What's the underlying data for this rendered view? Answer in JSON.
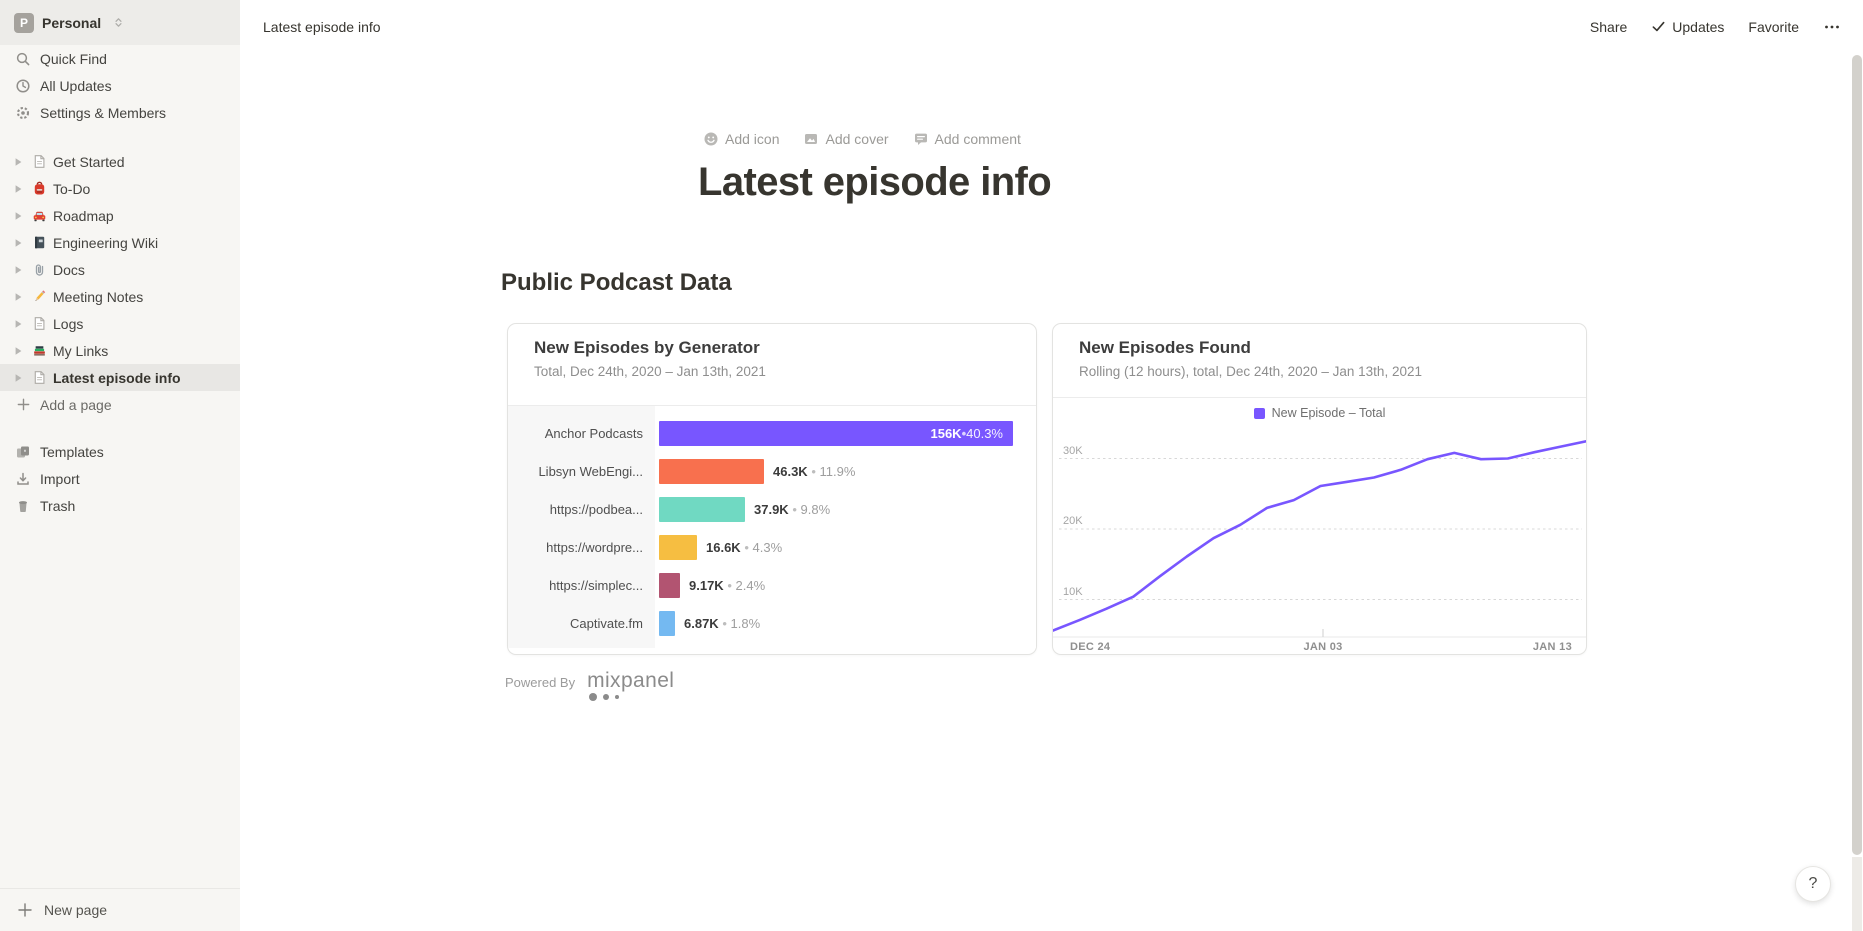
{
  "workspace": {
    "initial": "P",
    "name": "Personal"
  },
  "sidebar": {
    "top_items": [
      {
        "id": "quick-find",
        "icon": "search",
        "label": "Quick Find"
      },
      {
        "id": "all-updates",
        "icon": "clock",
        "label": "All Updates"
      },
      {
        "id": "settings-members",
        "icon": "gear",
        "label": "Settings & Members"
      }
    ],
    "pages": [
      {
        "id": "get-started",
        "icon": "page",
        "label": "Get Started",
        "selected": false
      },
      {
        "id": "to-do",
        "icon": "backpack",
        "label": "To-Do",
        "selected": false
      },
      {
        "id": "roadmap",
        "icon": "car",
        "label": "Roadmap",
        "selected": false
      },
      {
        "id": "engineering-wiki",
        "icon": "notebook",
        "label": "Engineering Wiki",
        "selected": false
      },
      {
        "id": "docs",
        "icon": "paperclip",
        "label": "Docs",
        "selected": false
      },
      {
        "id": "meeting-notes",
        "icon": "pencil",
        "label": "Meeting Notes",
        "selected": false
      },
      {
        "id": "logs",
        "icon": "page",
        "label": "Logs",
        "selected": false
      },
      {
        "id": "my-links",
        "icon": "books",
        "label": "My Links",
        "selected": false
      },
      {
        "id": "latest-episode-info",
        "icon": "page",
        "label": "Latest episode info",
        "selected": true
      }
    ],
    "add_page_label": "Add a page",
    "utility_items": [
      {
        "id": "templates",
        "icon": "templates",
        "label": "Templates"
      },
      {
        "id": "import",
        "icon": "import",
        "label": "Import"
      },
      {
        "id": "trash",
        "icon": "trash",
        "label": "Trash"
      }
    ],
    "new_page_label": "New page"
  },
  "topbar": {
    "breadcrumb": "Latest episode info",
    "share_label": "Share",
    "updates_label": "Updates",
    "favorite_label": "Favorite",
    "more_label": "•••"
  },
  "page": {
    "add_icon_label": "Add icon",
    "add_cover_label": "Add cover",
    "add_comment_label": "Add comment",
    "title": "Latest episode info",
    "section_heading": "Public Podcast Data"
  },
  "powered_by": {
    "prefix": "Powered By",
    "brand": "mixpanel"
  },
  "help_button_label": "?",
  "chart_data": [
    {
      "type": "bar",
      "orientation": "horizontal",
      "title": "New Episodes by Generator",
      "subtitle": "Total, Dec 24th, 2020 – Jan 13th, 2021",
      "categories": [
        "Anchor Podcasts",
        "Libsyn WebEngi...",
        "https://podbea...",
        "https://wordpre...",
        "https://simplec...",
        "Captivate.fm"
      ],
      "values": [
        156000,
        46300,
        37900,
        16600,
        9170,
        6870
      ],
      "value_labels": [
        "156K",
        "46.3K",
        "37.9K",
        "16.6K",
        "9.17K",
        "6.87K"
      ],
      "percent_labels": [
        "40.3%",
        "11.9%",
        "9.8%",
        "4.3%",
        "2.4%",
        "1.8%"
      ],
      "bar_colors": [
        "#7856FF",
        "#F8704E",
        "#70D9C2",
        "#F6BE41",
        "#B25471",
        "#74B9F1"
      ],
      "xlim": [
        0,
        172000
      ]
    },
    {
      "type": "line",
      "title": "New Episodes Found",
      "subtitle": "Rolling (12 hours), total, Dec 24th, 2020 – Jan 13th, 2021",
      "legend": [
        "New Episode – Total"
      ],
      "line_color": "#7856FF",
      "x_ticks": [
        "DEC 24",
        "JAN 03",
        "JAN 13"
      ],
      "y_ticks": [
        "10K",
        "20K",
        "30K"
      ],
      "ylim_k": [
        4,
        34
      ],
      "x_range": [
        "Dec 24, 2020",
        "Jan 13, 2021"
      ],
      "values_k": [
        5.6,
        7.1,
        8.7,
        10.4,
        13.3,
        16.1,
        18.7,
        20.6,
        23.0,
        24.1,
        26.1,
        26.7,
        27.3,
        28.4,
        29.9,
        30.8,
        29.9,
        30.0,
        30.9,
        31.7,
        32.5
      ],
      "grid": "dashed-horizontal",
      "legend_position": "top-center"
    }
  ]
}
